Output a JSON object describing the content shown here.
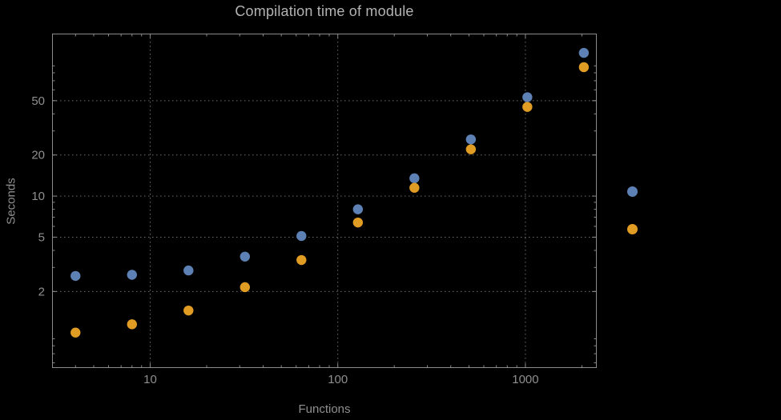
{
  "chart_data": {
    "type": "scatter",
    "title": "Compilation time of module",
    "xlabel": "Functions",
    "ylabel": "Seconds",
    "x_scale": "log",
    "y_scale": "log",
    "xlim": [
      3,
      2400
    ],
    "ylim": [
      0.55,
      155
    ],
    "x_ticks": [
      10,
      100,
      1000
    ],
    "y_ticks": [
      2,
      5,
      10,
      20,
      50
    ],
    "grid": true,
    "grid_style": "dotted",
    "x": [
      4,
      8,
      16,
      32,
      64,
      128,
      256,
      512,
      1024,
      2048
    ],
    "series": [
      {
        "name": "blue-series",
        "color": "#5e81b5",
        "values": [
          2.6,
          2.65,
          2.85,
          3.6,
          5.1,
          8.0,
          13.5,
          26,
          53,
          112
        ]
      },
      {
        "name": "orange-series",
        "color": "#e19c24",
        "values": [
          1.0,
          1.15,
          1.45,
          2.15,
          3.4,
          6.4,
          11.5,
          22,
          45,
          88
        ]
      }
    ],
    "legend_markers": [
      {
        "series": 0
      },
      {
        "series": 1
      }
    ],
    "style": {
      "frame_color": "#8a8a8a",
      "grid_color": "#6e6e6e",
      "text_color": "#8f8f8f",
      "background": "#000000"
    }
  }
}
